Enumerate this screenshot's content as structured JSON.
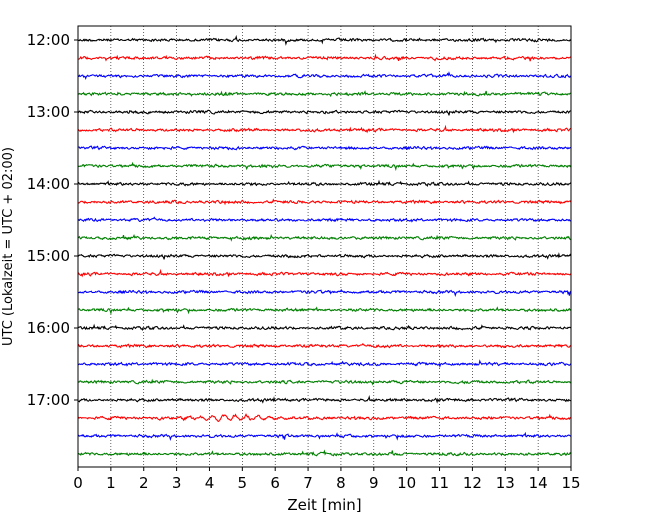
{
  "chart_data": {
    "type": "line",
    "title": "",
    "xlabel": "Zeit  [min]",
    "ylabel": "UTC (Lokalzeit = UTC + 02:00)",
    "xlim": [
      0,
      15
    ],
    "x_ticks": [
      "0",
      "1",
      "2",
      "3",
      "4",
      "5",
      "6",
      "7",
      "8",
      "9",
      "10",
      "11",
      "12",
      "13",
      "14",
      "15"
    ],
    "y_tick_labels": [
      "12:00",
      "13:00",
      "14:00",
      "15:00",
      "16:00",
      "17:00"
    ],
    "grid": "vertical dotted lines at each minute",
    "trace_start_times": [
      "12:00",
      "12:15",
      "12:30",
      "12:45",
      "13:00",
      "13:15",
      "13:30",
      "13:45",
      "14:00",
      "14:15",
      "14:30",
      "14:45",
      "15:00",
      "15:15",
      "15:30",
      "15:45",
      "16:00",
      "16:15",
      "16:30",
      "16:45",
      "17:00",
      "17:15",
      "17:30",
      "17:45"
    ],
    "trace_colors": [
      "#000000",
      "#ff0000",
      "#0000ff",
      "#008000"
    ],
    "high_amplitude_trace": "17:15"
  }
}
